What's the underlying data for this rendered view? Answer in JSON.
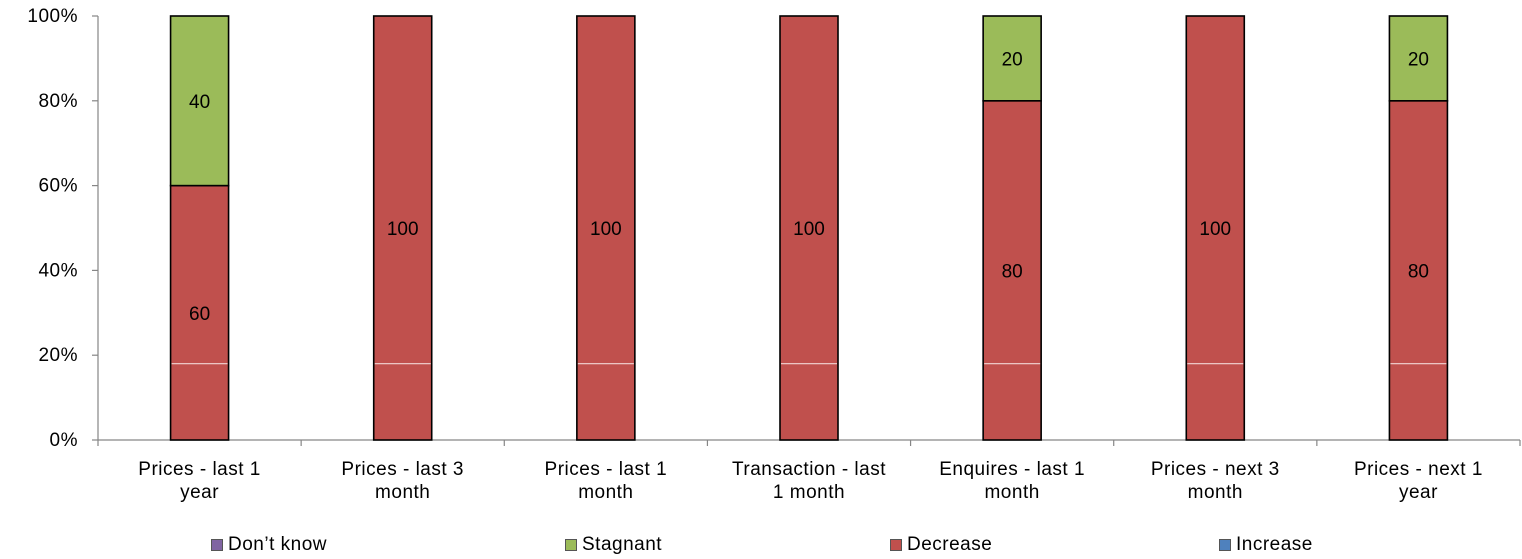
{
  "chart_data": {
    "type": "bar",
    "stacked": true,
    "percent": true,
    "categories": [
      [
        "Prices - last 1",
        "year"
      ],
      [
        "Prices - last 3",
        "month"
      ],
      [
        "Prices - last 1",
        "month"
      ],
      [
        "Transaction - last",
        "1 month"
      ],
      [
        "Enquires - last 1",
        "month"
      ],
      [
        "Prices - next 3",
        "month"
      ],
      [
        "Prices - next 1",
        "year"
      ]
    ],
    "series": [
      {
        "name": "Don’t know",
        "color": "#8064A2",
        "values": [
          0,
          0,
          0,
          0,
          0,
          0,
          0
        ]
      },
      {
        "name": "Stagnant",
        "color": "#9BBB59",
        "values": [
          40,
          0,
          0,
          0,
          20,
          0,
          20
        ]
      },
      {
        "name": "Decrease",
        "color": "#C0504D",
        "values": [
          60,
          100,
          100,
          100,
          80,
          100,
          80
        ]
      },
      {
        "name": "Increase",
        "color": "#4F81BD",
        "values": [
          0,
          0,
          0,
          0,
          0,
          0,
          0
        ]
      }
    ],
    "y_tick_labels": [
      "0%",
      "20%",
      "40%",
      "60%",
      "80%",
      "100%"
    ],
    "ylim": [
      0,
      100
    ],
    "grid": false,
    "legend_position": "bottom",
    "data_labels": true
  }
}
